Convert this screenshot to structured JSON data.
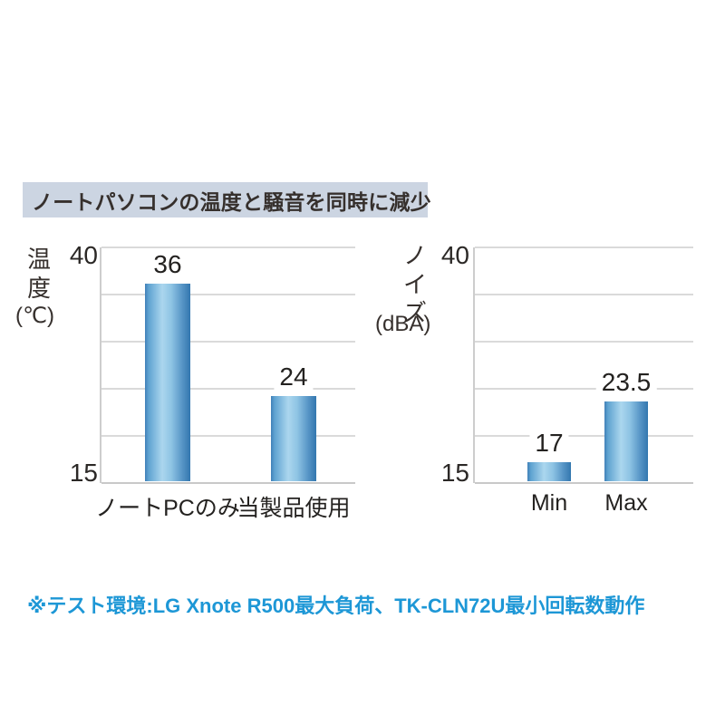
{
  "title": "ノートパソコンの温度と騒音を同時に減少",
  "note": "※テスト環境:LG Xnote R500最大負荷、TK-CLN72U最小回転数動作",
  "colors": {
    "title_bg": "#ccd5e2",
    "text_dark": "#36302d",
    "note_blue": "#1d97d6",
    "bar_edge": "#3377af",
    "bar_highlight": "#abd6ee",
    "gridline": "#dadada"
  },
  "chart_data": [
    {
      "type": "bar",
      "ylabel": "温度",
      "y_unit": "(℃)",
      "categories": [
        "ノートPCのみ",
        "当製品使用"
      ],
      "values": [
        36,
        24
      ],
      "value_labels": [
        "36",
        "24"
      ],
      "ylim": [
        15,
        40
      ],
      "grid_step": 5,
      "ytick_top": "40",
      "ytick_bottom": "15",
      "grid": "on",
      "legend": "none"
    },
    {
      "type": "bar",
      "ylabel": "ノイズ",
      "y_unit": "(dBA)",
      "categories": [
        "Min",
        "Max"
      ],
      "values": [
        17,
        23.5
      ],
      "value_labels": [
        "17",
        "23.5"
      ],
      "ylim": [
        15,
        40
      ],
      "grid_step": 5,
      "ytick_top": "40",
      "ytick_bottom": "15",
      "grid": "on",
      "legend": "none"
    }
  ]
}
